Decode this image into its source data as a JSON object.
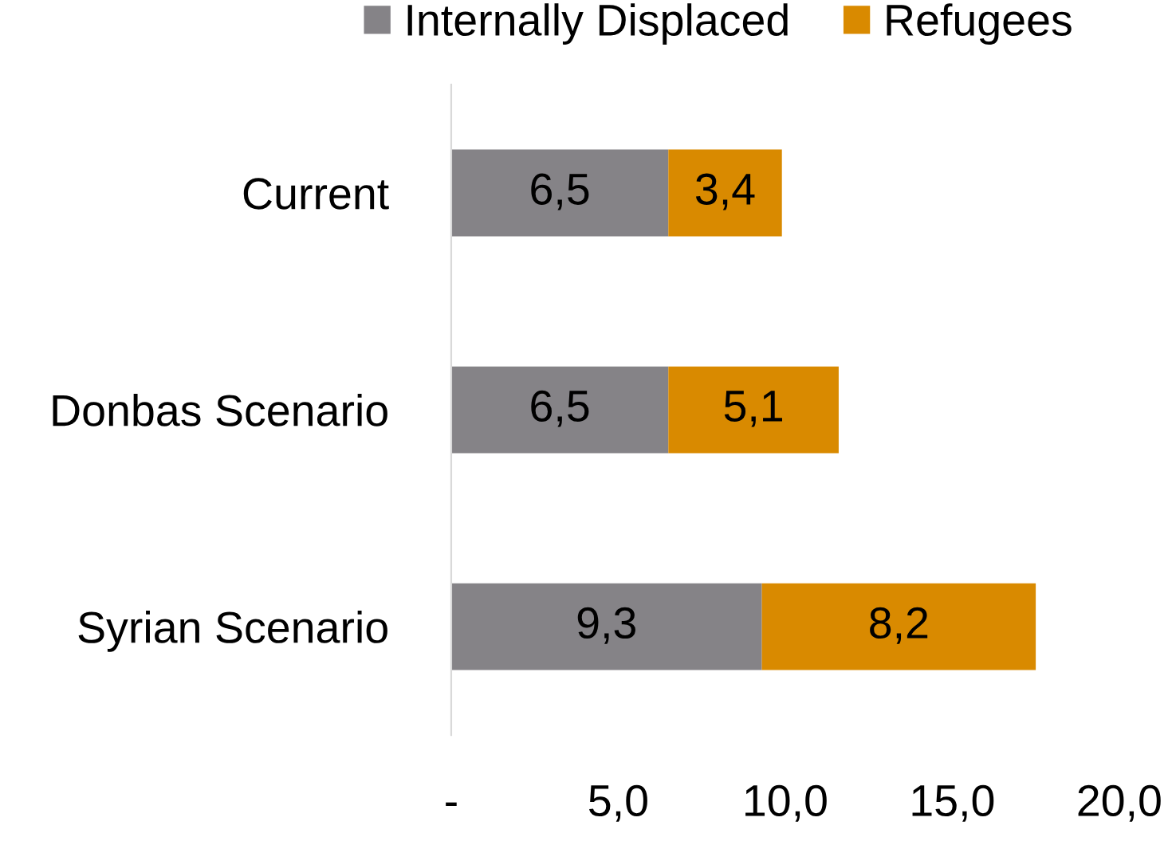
{
  "chart_data": {
    "type": "bar",
    "orientation": "horizontal",
    "stacked": true,
    "categories": [
      "Current",
      "Donbas Scenario",
      "Syrian Scenario"
    ],
    "series": [
      {
        "name": "Internally Displaced",
        "color": "#858387",
        "values": [
          6.5,
          6.5,
          9.3
        ],
        "value_labels": [
          "6,5",
          "6,5",
          "9,3"
        ]
      },
      {
        "name": "Refugees",
        "color": "#d98a00",
        "values": [
          3.4,
          5.1,
          8.2
        ],
        "value_labels": [
          "3,4",
          "5,1",
          "8,2"
        ]
      }
    ],
    "xlim": [
      0,
      20
    ],
    "xticks": [
      {
        "value": 0,
        "label": "-"
      },
      {
        "value": 5,
        "label": "5,0"
      },
      {
        "value": 10,
        "label": "10,0"
      },
      {
        "value": 15,
        "label": "15,0"
      },
      {
        "value": 20,
        "label": "20,0"
      }
    ],
    "grid": false,
    "legend": "top"
  }
}
